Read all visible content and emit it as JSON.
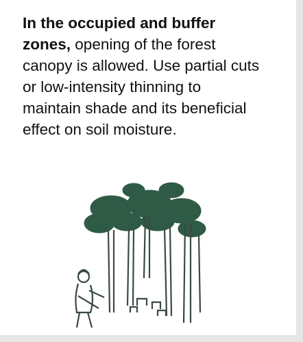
{
  "text": {
    "bold": "In the occupied and buffer zones,",
    "body": "opening of the forest canopy is allowed. Use partial cuts or low-intensity thinning to maintain shade and its beneficial effect on soil moisture."
  }
}
